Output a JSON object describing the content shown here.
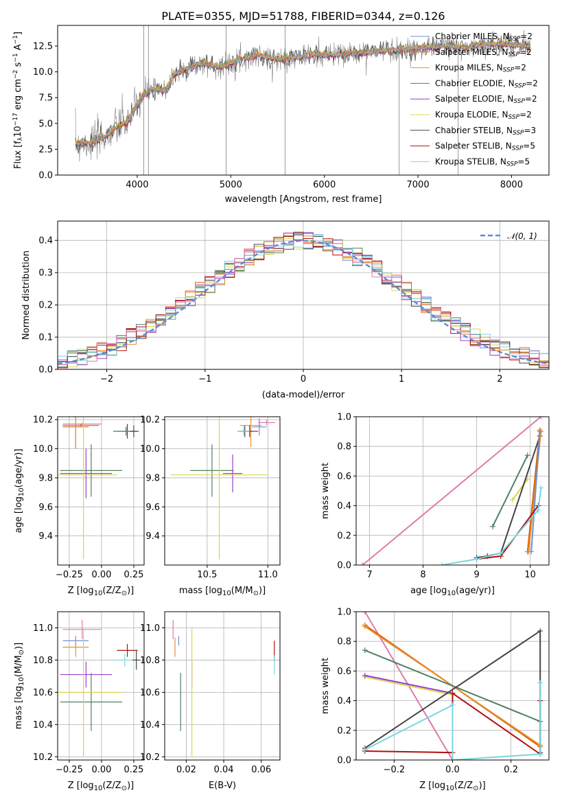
{
  "colors": {
    "chabrier_miles": "#6e8fd6",
    "salpeter_miles": "#d95f02",
    "kroupa_miles": "#e6912f",
    "chabrier_elodie": "#4f7f5f",
    "salpeter_elodie": "#9b3bd1",
    "kroupa_elodie": "#d8d84a",
    "chabrier_stelib": "#444444",
    "salpeter_stelib": "#b01010",
    "kroupa_stelib": "#78d5e0",
    "pink": "#e07aa9",
    "grid": "#b0b0b0"
  },
  "chart_data": [
    {
      "id": "spectrum",
      "type": "line",
      "title": "PLATE=0355, MJD=51788, FIBERID=0344, z=0.126",
      "xlabel": "wavelength [Angstrom, rest frame]",
      "ylabel_parts": [
        "Flux [f",
        "λ",
        "10",
        "−17",
        " erg cm",
        "−2",
        " s",
        "−1",
        " A",
        "−1",
        "]"
      ],
      "xlim": [
        3150,
        8400
      ],
      "ylim": [
        0,
        14.5
      ],
      "xticks": [
        4000,
        5000,
        6000,
        7000,
        8000
      ],
      "yticks": [
        0.0,
        2.5,
        5.0,
        7.5,
        10.0,
        12.5
      ],
      "legend_position": "right",
      "legend": [
        {
          "pre": "Chabrier MILES, N",
          "sub": "SSP",
          "post": "=2",
          "color_key": "chabrier_miles"
        },
        {
          "pre": "Salpeter MILES, N",
          "sub": "SSP",
          "post": "=2",
          "color_key": "salpeter_miles"
        },
        {
          "pre": "Kroupa MILES, N",
          "sub": "SSP",
          "post": "=2",
          "color_key": "kroupa_miles"
        },
        {
          "pre": "Chabrier ELODIE, N",
          "sub": "SSP",
          "post": "=2",
          "color_key": "chabrier_elodie"
        },
        {
          "pre": "Salpeter ELODIE, N",
          "sub": "SSP",
          "post": "=2",
          "color_key": "salpeter_elodie"
        },
        {
          "pre": "Kroupa ELODIE, N",
          "sub": "SSP",
          "post": "=2",
          "color_key": "kroupa_elodie"
        },
        {
          "pre": "Chabrier STELIB, N",
          "sub": "SSP",
          "post": "=3",
          "color_key": "chabrier_stelib"
        },
        {
          "pre": "Salpeter STELIB, N",
          "sub": "SSP",
          "post": "=5",
          "color_key": "salpeter_stelib"
        },
        {
          "pre": "Kroupa STELIB, N",
          "sub": "SSP",
          "post": "=5",
          "color_key": "kroupa_stelib"
        }
      ],
      "continuum": [
        [
          3330,
          3.0
        ],
        [
          3400,
          3.2
        ],
        [
          3500,
          3.1
        ],
        [
          3600,
          3.5
        ],
        [
          3700,
          4.0
        ],
        [
          3800,
          4.8
        ],
        [
          3900,
          5.2
        ],
        [
          3950,
          6.0
        ],
        [
          4050,
          7.6
        ],
        [
          4150,
          8.3
        ],
        [
          4300,
          8.2
        ],
        [
          4400,
          9.8
        ],
        [
          4500,
          10.2
        ],
        [
          4700,
          10.8
        ],
        [
          4900,
          10.5
        ],
        [
          5100,
          11.2
        ],
        [
          5300,
          11.6
        ],
        [
          5500,
          11.2
        ],
        [
          5700,
          11.4
        ],
        [
          5900,
          11.7
        ],
        [
          6100,
          11.6
        ],
        [
          6300,
          11.8
        ],
        [
          6500,
          11.9
        ],
        [
          6700,
          12.1
        ],
        [
          6900,
          12.2
        ],
        [
          7100,
          12.4
        ],
        [
          7300,
          12.5
        ],
        [
          7500,
          12.3
        ],
        [
          7700,
          12.6
        ],
        [
          7900,
          12.7
        ],
        [
          8200,
          12.5
        ]
      ],
      "noisy_range": [
        3340,
        8200
      ],
      "spikes": [
        {
          "x": 4070,
          "y1": 0,
          "y2": 14.5
        },
        {
          "x": 4120,
          "y1": 0,
          "y2": 14.5
        },
        {
          "x": 4950,
          "y1": 0,
          "y2": 14.5
        },
        {
          "x": 5580,
          "y1": 0,
          "y2": 14.5
        },
        {
          "x": 6800,
          "y1": 0,
          "y2": 12.2
        },
        {
          "x": 7430,
          "y1": 0,
          "y2": 12.0
        }
      ]
    },
    {
      "id": "residuals",
      "type": "line",
      "xlabel": "(data-model)/error",
      "ylabel": "Normed distribution",
      "xlim": [
        -2.5,
        2.5
      ],
      "ylim": [
        0,
        0.46
      ],
      "xticks": [
        -2,
        -1,
        0,
        1,
        2
      ],
      "yticks": [
        0.0,
        0.1,
        0.2,
        0.3,
        0.4
      ],
      "legend_label": "𝒩(0, 1)",
      "legend_position": "top-right",
      "gaussian": {
        "mean": 0,
        "sigma": 1,
        "color": "#5a8ad6"
      },
      "bin_width": 0.1
    },
    {
      "id": "age_vs_Z",
      "type": "scatter",
      "xlabel": {
        "pre": "Z [log",
        "sub": "10",
        "post": "(Z/Z",
        "sub2": "⊙",
        "post2": ")]"
      },
      "ylabel": {
        "pre": "age  [log",
        "sub": "10",
        "post": "(age/yr)]"
      },
      "xlim": [
        -0.34,
        0.33
      ],
      "ylim": [
        9.2,
        10.22
      ],
      "xticks": [
        -0.25,
        0.0,
        0.25
      ],
      "yticks": [
        9.4,
        9.6,
        9.8,
        10.0,
        10.2
      ],
      "points": [
        {
          "x": -0.15,
          "y": 10.17,
          "xerr": 0.15,
          "yerr": 0.01,
          "c": "pink"
        },
        {
          "x": -0.16,
          "y": 10.16,
          "xerr": 0.14,
          "yerr": 0.01,
          "c": "salpeter_miles"
        },
        {
          "x": -0.2,
          "y": 10.15,
          "xerr": 0.1,
          "yerr": 0.15,
          "c": "chabrier_miles"
        },
        {
          "x": -0.2,
          "y": 10.15,
          "xerr": 0.1,
          "yerr": 0.14,
          "c": "kroupa_miles"
        },
        {
          "x": 0.2,
          "y": 10.12,
          "xerr": 0.08,
          "yerr": 0.05,
          "c": "salpeter_stelib"
        },
        {
          "x": 0.19,
          "y": 10.12,
          "xerr": 0.1,
          "yerr": 0.03,
          "c": "kroupa_stelib"
        },
        {
          "x": 0.19,
          "y": 10.12,
          "xerr": 0.1,
          "yerr": 0.03,
          "c": "chabrier_elodie"
        },
        {
          "x": 0.25,
          "y": 10.12,
          "xerr": 0.03,
          "yerr": 0.04,
          "c": "chabrier_stelib"
        },
        {
          "x": -0.08,
          "y": 9.85,
          "xerr": 0.24,
          "yerr": 0.18,
          "c": "chabrier_elodie"
        },
        {
          "x": -0.12,
          "y": 9.83,
          "xerr": 0.2,
          "yerr": 0.17,
          "c": "salpeter_elodie"
        },
        {
          "x": -0.14,
          "y": 9.82,
          "xerr": 0.26,
          "yerr": 0.58,
          "c": "kroupa_elodie"
        }
      ]
    },
    {
      "id": "age_vs_mass",
      "type": "scatter",
      "xlabel": {
        "pre": "mass [log",
        "sub": "10",
        "post": "(M/M",
        "sub2": "⊙",
        "post2": ")]"
      },
      "xlim": [
        10.15,
        11.1
      ],
      "ylim": [
        9.2,
        10.22
      ],
      "xticks": [
        10.5,
        11.0
      ],
      "yticks": [
        9.4,
        9.6,
        9.8,
        10.0,
        10.2
      ],
      "points": [
        {
          "x": 10.99,
          "y": 10.18,
          "xerr": 0.07,
          "yerr": 0.02,
          "c": "pink"
        },
        {
          "x": 10.86,
          "y": 10.16,
          "xerr": 0.09,
          "yerr": 0.15,
          "c": "kroupa_miles"
        },
        {
          "x": 10.93,
          "y": 10.15,
          "xerr": 0.06,
          "yerr": 0.06,
          "c": "chabrier_miles"
        },
        {
          "x": 10.85,
          "y": 10.12,
          "xerr": 0.07,
          "yerr": 0.04,
          "c": "salpeter_stelib"
        },
        {
          "x": 10.81,
          "y": 10.12,
          "xerr": 0.06,
          "yerr": 0.04,
          "c": "chabrier_stelib"
        },
        {
          "x": 10.8,
          "y": 10.12,
          "xerr": 0.05,
          "yerr": 0.03,
          "c": "kroupa_stelib"
        },
        {
          "x": 10.54,
          "y": 9.85,
          "xerr": 0.18,
          "yerr": 0.18,
          "c": "chabrier_elodie"
        },
        {
          "x": 10.71,
          "y": 9.83,
          "xerr": 0.08,
          "yerr": 0.13,
          "c": "salpeter_elodie"
        },
        {
          "x": 10.6,
          "y": 9.82,
          "xerr": 0.4,
          "yerr": 0.58,
          "c": "kroupa_elodie"
        }
      ]
    },
    {
      "id": "weight_vs_age",
      "type": "line",
      "xlabel": {
        "pre": "age  [log",
        "sub": "10",
        "post": "(age/yr)]"
      },
      "ylabel": "mass weight",
      "xlim": [
        6.75,
        10.35
      ],
      "ylim": [
        0,
        1.0
      ],
      "xticks": [
        7,
        8,
        9,
        10
      ],
      "yticks": [
        0.0,
        0.2,
        0.4,
        0.6,
        0.8,
        1.0
      ],
      "series": [
        {
          "c": "pink",
          "pts": [
            [
              6.87,
              0.0
            ],
            [
              10.2,
              1.0
            ]
          ]
        },
        {
          "c": "chabrier_elodie",
          "pts": [
            [
              9.3,
              0.26
            ],
            [
              9.95,
              0.74
            ]
          ]
        },
        {
          "c": "kroupa_elodie",
          "pts": [
            [
              9.67,
              0.44
            ],
            [
              9.95,
              0.58
            ]
          ]
        },
        {
          "c": "chabrier_stelib",
          "pts": [
            [
              9.0,
              0.05
            ],
            [
              9.2,
              0.06
            ],
            [
              9.45,
              0.08
            ],
            [
              10.18,
              0.87
            ]
          ]
        },
        {
          "c": "salpeter_miles",
          "pts": [
            [
              9.95,
              0.09
            ],
            [
              10.18,
              0.91
            ]
          ]
        },
        {
          "c": "kroupa_miles",
          "pts": [
            [
              9.97,
              0.09
            ],
            [
              10.2,
              0.9
            ]
          ]
        },
        {
          "c": "chabrier_miles",
          "pts": [
            [
              10.02,
              0.09
            ],
            [
              10.18,
              0.9
            ]
          ]
        },
        {
          "c": "salpeter_stelib",
          "pts": [
            [
              9.0,
              0.04
            ],
            [
              9.45,
              0.06
            ],
            [
              10.15,
              0.4
            ]
          ]
        },
        {
          "c": "kroupa_stelib",
          "pts": [
            [
              8.35,
              0.0
            ],
            [
              9.0,
              0.04
            ],
            [
              9.45,
              0.08
            ],
            [
              10.15,
              0.37
            ],
            [
              10.2,
              0.52
            ]
          ]
        }
      ]
    },
    {
      "id": "mass_vs_Z",
      "type": "scatter",
      "xlabel": {
        "pre": "Z [log",
        "sub": "10",
        "post": "(Z/Z",
        "sub2": "⊙",
        "post2": ")]"
      },
      "ylabel": {
        "pre": "mass [log",
        "sub": "10",
        "post": "(M/M",
        "sub2": "⊙",
        "post2": ")]"
      },
      "xlim": [
        -0.34,
        0.33
      ],
      "ylim": [
        10.18,
        11.1
      ],
      "xticks": [
        -0.25,
        0.0,
        0.25
      ],
      "yticks": [
        10.2,
        10.4,
        10.6,
        10.8,
        11.0
      ],
      "points": [
        {
          "x": -0.15,
          "y": 10.99,
          "xerr": 0.15,
          "yerr": 0.06,
          "c": "pink"
        },
        {
          "x": -0.2,
          "y": 10.92,
          "xerr": 0.1,
          "yerr": 0.03,
          "c": "chabrier_miles"
        },
        {
          "x": -0.2,
          "y": 10.88,
          "xerr": 0.1,
          "yerr": 0.06,
          "c": "kroupa_miles"
        },
        {
          "x": 0.2,
          "y": 10.86,
          "xerr": 0.08,
          "yerr": 0.04,
          "c": "salpeter_stelib"
        },
        {
          "x": 0.18,
          "y": 10.8,
          "xerr": 0.11,
          "yerr": 0.04,
          "c": "kroupa_stelib"
        },
        {
          "x": 0.27,
          "y": 10.8,
          "xerr": 0.03,
          "yerr": 0.06,
          "c": "chabrier_stelib"
        },
        {
          "x": -0.12,
          "y": 10.71,
          "xerr": 0.2,
          "yerr": 0.08,
          "c": "salpeter_elodie"
        },
        {
          "x": -0.08,
          "y": 10.54,
          "xerr": 0.24,
          "yerr": 0.18,
          "c": "chabrier_elodie"
        },
        {
          "x": -0.14,
          "y": 10.6,
          "xerr": 0.3,
          "yerr": 0.4,
          "c": "kroupa_elodie"
        }
      ]
    },
    {
      "id": "mass_vs_EBV",
      "type": "scatter",
      "xlabel": "E(B-V)",
      "xlim": [
        0.0085,
        0.07
      ],
      "ylim": [
        10.18,
        11.1
      ],
      "xticks": [
        0.02,
        0.04,
        0.06
      ],
      "yticks": [
        10.2,
        10.4,
        10.6,
        10.8,
        11.0
      ],
      "points": [
        {
          "x": 0.013,
          "y": 10.99,
          "xerr": 0,
          "yerr": 0.06,
          "c": "pink"
        },
        {
          "x": 0.014,
          "y": 10.88,
          "xerr": 0,
          "yerr": 0.06,
          "c": "kroupa_miles"
        },
        {
          "x": 0.016,
          "y": 10.92,
          "xerr": 0,
          "yerr": 0.03,
          "c": "chabrier_miles"
        },
        {
          "x": 0.017,
          "y": 10.54,
          "xerr": 0,
          "yerr": 0.18,
          "c": "chabrier_elodie"
        },
        {
          "x": 0.023,
          "y": 10.71,
          "xerr": 0,
          "yerr": 0.08,
          "c": "salpeter_elodie"
        },
        {
          "x": 0.023,
          "y": 10.6,
          "xerr": 0,
          "yerr": 0.4,
          "c": "kroupa_elodie"
        },
        {
          "x": 0.067,
          "y": 10.86,
          "xerr": 0,
          "yerr": 0.06,
          "c": "salpeter_stelib"
        },
        {
          "x": 0.067,
          "y": 10.77,
          "xerr": 0,
          "yerr": 0.06,
          "c": "kroupa_stelib"
        }
      ]
    },
    {
      "id": "weight_vs_Z",
      "type": "line",
      "xlabel": {
        "pre": "Z [log",
        "sub": "10",
        "post": "(Z/Z",
        "sub2": "⊙",
        "post2": ")]"
      },
      "ylabel": "mass weight",
      "xlim": [
        -0.33,
        0.33
      ],
      "ylim": [
        0,
        1.0
      ],
      "xticks": [
        -0.2,
        0.0,
        0.2
      ],
      "yticks": [
        0.0,
        0.2,
        0.4,
        0.6,
        0.8,
        1.0
      ],
      "series": [
        {
          "c": "pink",
          "pts": [
            [
              -0.3,
              1.0
            ],
            [
              0.0,
              0.0
            ]
          ]
        },
        {
          "c": "salpeter_miles",
          "pts": [
            [
              -0.3,
              0.91
            ],
            [
              0.3,
              0.09
            ]
          ]
        },
        {
          "c": "kroupa_miles",
          "pts": [
            [
              -0.3,
              0.9
            ],
            [
              0.3,
              0.1
            ]
          ]
        },
        {
          "c": "chabrier_elodie",
          "pts": [
            [
              -0.3,
              0.74
            ],
            [
              0.3,
              0.26
            ]
          ]
        },
        {
          "c": "kroupa_elodie",
          "pts": [
            [
              -0.3,
              0.56
            ],
            [
              0.0,
              0.44
            ]
          ]
        },
        {
          "c": "salpeter_elodie",
          "pts": [
            [
              -0.3,
              0.57
            ],
            [
              0.0,
              0.45
            ]
          ]
        },
        {
          "c": "chabrier_stelib",
          "pts": [
            [
              -0.3,
              0.08
            ],
            [
              0.3,
              0.87
            ],
            [
              0.3,
              0.05
            ]
          ]
        },
        {
          "c": "salpeter_stelib",
          "pts": [
            [
              -0.3,
              0.06
            ],
            [
              0.0,
              0.05
            ],
            [
              0.0,
              0.45
            ],
            [
              0.3,
              0.04
            ],
            [
              0.3,
              0.4
            ]
          ]
        },
        {
          "c": "kroupa_stelib",
          "pts": [
            [
              -0.3,
              0.07
            ],
            [
              0.0,
              0.37
            ],
            [
              0.0,
              0.0
            ],
            [
              0.3,
              0.04
            ],
            [
              0.3,
              0.52
            ]
          ]
        }
      ]
    }
  ]
}
